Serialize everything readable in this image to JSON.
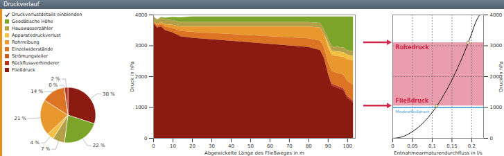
{
  "panel": {
    "title": "Druckverlauf",
    "checkbox": "Druckverlustdetails einblenden"
  },
  "chart_data": [
    {
      "type": "pie",
      "categories": [
        "Fließdruck",
        "Geodätische Höhe",
        "Hauswasserzähler",
        "Apparatedruckverlust",
        "Rohrreibung",
        "Einzelwiderstände",
        "Strömungsteiler",
        "Rückflussverhinderer"
      ],
      "values": [
        30,
        22,
        7,
        4,
        21,
        14,
        0,
        2
      ],
      "value_labels": [
        "30 %",
        "22 %",
        "7 %",
        "4 %",
        "21 %",
        "14 %",
        "0 %",
        "2 %"
      ],
      "colors": [
        "#8b1a10",
        "#7ba428",
        "#b5a04a",
        "#f2c042",
        "#e8982c",
        "#dc7424",
        "#cc5a26",
        "#b8321e"
      ],
      "data_labels": true
    },
    {
      "type": "area",
      "stacked": true,
      "legend": "left",
      "xlabel": "Abgewickelte Länge des Fließweges in m",
      "ylabel": "Druck in hPa",
      "x": [
        0,
        2,
        4,
        6,
        10,
        14,
        20,
        40,
        60,
        80,
        86,
        88,
        90,
        92,
        98,
        100,
        103
      ],
      "series": [
        {
          "name": "Geodätische Höhe",
          "color": "#7ba428",
          "values": [
            0,
            0,
            20,
            60,
            100,
            150,
            180,
            180,
            180,
            180,
            210,
            420,
            690,
            960,
            1010,
            1090,
            1130
          ]
        },
        {
          "name": "Hauswasserzähler",
          "color": "#b5a04a",
          "values": [
            150,
            150,
            150,
            150,
            150,
            150,
            150,
            150,
            150,
            150,
            150,
            150,
            150,
            150,
            150,
            150,
            150
          ]
        },
        {
          "name": "Apparatedruckverlust",
          "color": "#f2c042",
          "values": [
            0,
            0,
            0,
            0,
            0,
            0,
            0,
            0,
            0,
            0,
            0,
            0,
            150,
            150,
            150,
            150,
            150
          ]
        },
        {
          "name": "Rohrreibung",
          "color": "#e8982c",
          "values": [
            20,
            40,
            50,
            80,
            110,
            140,
            170,
            240,
            310,
            380,
            420,
            440,
            480,
            510,
            580,
            700,
            780
          ]
        },
        {
          "name": "Einzelwiderstände",
          "color": "#dc7424",
          "values": [
            50,
            70,
            80,
            110,
            140,
            170,
            190,
            220,
            250,
            280,
            310,
            330,
            370,
            410,
            440,
            490,
            520
          ]
        },
        {
          "name": "Strömungsteiler",
          "color": "#cc5a26",
          "values": [
            0,
            0,
            0,
            0,
            0,
            0,
            0,
            0,
            0,
            0,
            0,
            0,
            0,
            0,
            0,
            0,
            0
          ]
        },
        {
          "name": "Rückflussverhinderer",
          "color": "#b8321e",
          "values": [
            0,
            0,
            0,
            0,
            0,
            0,
            0,
            0,
            0,
            0,
            0,
            0,
            0,
            60,
            60,
            60,
            60
          ]
        },
        {
          "name": "Fließdruck",
          "color": "#8b1a10",
          "values": [
            3730,
            3580,
            3620,
            3500,
            3420,
            3300,
            3250,
            3150,
            3050,
            2950,
            2850,
            2600,
            2100,
            1700,
            1550,
            1300,
            1150
          ]
        }
      ],
      "xlim": [
        0,
        104
      ],
      "xticks": [
        0,
        10,
        20,
        30,
        40,
        50,
        60,
        70,
        80,
        90,
        100
      ],
      "ylim": [
        0,
        4000
      ],
      "yticks": [
        0,
        1000,
        2000,
        3000,
        4000
      ],
      "grid": false
    },
    {
      "type": "line",
      "grid": true,
      "xlabel": "Entnahmearmaturendurchfluss in l/s",
      "y2label": "Druck in hPa",
      "x": [
        0,
        0.02,
        0.04,
        0.06,
        0.08,
        0.1,
        0.12,
        0.14,
        0.16,
        0.18,
        0.2,
        0.21,
        0.22
      ],
      "series": [
        {
          "color": "#111111",
          "axis": "y2",
          "values": [
            0,
            35,
            140,
            310,
            540,
            840,
            1210,
            1650,
            2160,
            2740,
            3400,
            3760,
            4000
          ]
        }
      ],
      "points": {
        "x": [
          0.111,
          0.191
        ],
        "y": [
          1050,
          3100
        ]
      },
      "annotations": [
        {
          "text": "Ruhedruck",
          "y": 3100,
          "color": "#d0284a"
        },
        {
          "text": "Fließdruck",
          "y": 1050,
          "color": "#d0284a"
        }
      ],
      "reference_line": {
        "text": "Mindestfließdruck",
        "y": 1000,
        "color": "#3a9ad9"
      },
      "xlim": [
        0,
        0.23
      ],
      "xticks": [
        0,
        {
          "value": 0.05,
          "label": "0,05"
        },
        {
          "value": 0.1,
          "label": "0,1"
        },
        {
          "value": 0.15,
          "label": "0,15"
        },
        {
          "value": 0.2,
          "label": "0,2"
        }
      ],
      "y2lim": [
        0,
        4000
      ],
      "y2ticks": [
        0,
        1000,
        2000,
        3000,
        4000
      ]
    }
  ]
}
